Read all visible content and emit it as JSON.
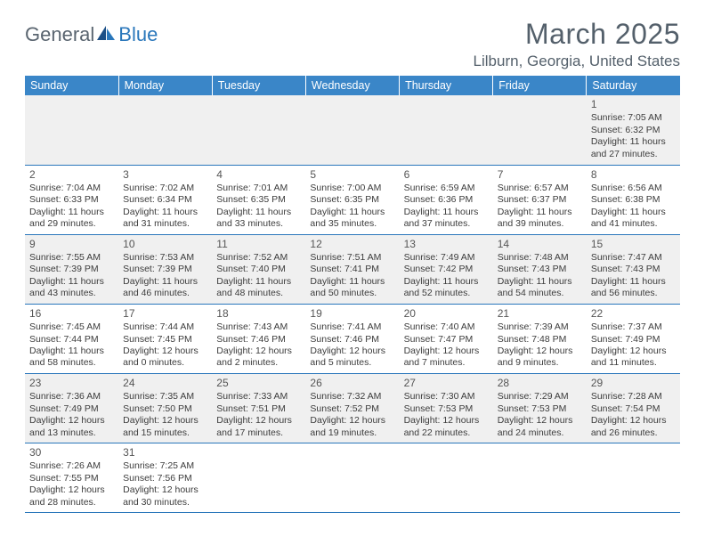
{
  "logo": {
    "general": "General",
    "blue": "Blue"
  },
  "title": "March 2025",
  "location": "Lilburn, Georgia, United States",
  "colors": {
    "header_bg": "#3a86c8",
    "header_text": "#ffffff",
    "row_even_bg": "#f0f0f0",
    "row_odd_bg": "#ffffff",
    "border": "#2a77bb",
    "text": "#3c3c3c",
    "title_text": "#54606b",
    "logo_gray": "#5a6570",
    "logo_blue": "#2a77bb"
  },
  "day_headers": [
    "Sunday",
    "Monday",
    "Tuesday",
    "Wednesday",
    "Thursday",
    "Friday",
    "Saturday"
  ],
  "weeks": [
    [
      null,
      null,
      null,
      null,
      null,
      null,
      {
        "n": "1",
        "sr": "Sunrise: 7:05 AM",
        "ss": "Sunset: 6:32 PM",
        "d1": "Daylight: 11 hours",
        "d2": "and 27 minutes."
      }
    ],
    [
      {
        "n": "2",
        "sr": "Sunrise: 7:04 AM",
        "ss": "Sunset: 6:33 PM",
        "d1": "Daylight: 11 hours",
        "d2": "and 29 minutes."
      },
      {
        "n": "3",
        "sr": "Sunrise: 7:02 AM",
        "ss": "Sunset: 6:34 PM",
        "d1": "Daylight: 11 hours",
        "d2": "and 31 minutes."
      },
      {
        "n": "4",
        "sr": "Sunrise: 7:01 AM",
        "ss": "Sunset: 6:35 PM",
        "d1": "Daylight: 11 hours",
        "d2": "and 33 minutes."
      },
      {
        "n": "5",
        "sr": "Sunrise: 7:00 AM",
        "ss": "Sunset: 6:35 PM",
        "d1": "Daylight: 11 hours",
        "d2": "and 35 minutes."
      },
      {
        "n": "6",
        "sr": "Sunrise: 6:59 AM",
        "ss": "Sunset: 6:36 PM",
        "d1": "Daylight: 11 hours",
        "d2": "and 37 minutes."
      },
      {
        "n": "7",
        "sr": "Sunrise: 6:57 AM",
        "ss": "Sunset: 6:37 PM",
        "d1": "Daylight: 11 hours",
        "d2": "and 39 minutes."
      },
      {
        "n": "8",
        "sr": "Sunrise: 6:56 AM",
        "ss": "Sunset: 6:38 PM",
        "d1": "Daylight: 11 hours",
        "d2": "and 41 minutes."
      }
    ],
    [
      {
        "n": "9",
        "sr": "Sunrise: 7:55 AM",
        "ss": "Sunset: 7:39 PM",
        "d1": "Daylight: 11 hours",
        "d2": "and 43 minutes."
      },
      {
        "n": "10",
        "sr": "Sunrise: 7:53 AM",
        "ss": "Sunset: 7:39 PM",
        "d1": "Daylight: 11 hours",
        "d2": "and 46 minutes."
      },
      {
        "n": "11",
        "sr": "Sunrise: 7:52 AM",
        "ss": "Sunset: 7:40 PM",
        "d1": "Daylight: 11 hours",
        "d2": "and 48 minutes."
      },
      {
        "n": "12",
        "sr": "Sunrise: 7:51 AM",
        "ss": "Sunset: 7:41 PM",
        "d1": "Daylight: 11 hours",
        "d2": "and 50 minutes."
      },
      {
        "n": "13",
        "sr": "Sunrise: 7:49 AM",
        "ss": "Sunset: 7:42 PM",
        "d1": "Daylight: 11 hours",
        "d2": "and 52 minutes."
      },
      {
        "n": "14",
        "sr": "Sunrise: 7:48 AM",
        "ss": "Sunset: 7:43 PM",
        "d1": "Daylight: 11 hours",
        "d2": "and 54 minutes."
      },
      {
        "n": "15",
        "sr": "Sunrise: 7:47 AM",
        "ss": "Sunset: 7:43 PM",
        "d1": "Daylight: 11 hours",
        "d2": "and 56 minutes."
      }
    ],
    [
      {
        "n": "16",
        "sr": "Sunrise: 7:45 AM",
        "ss": "Sunset: 7:44 PM",
        "d1": "Daylight: 11 hours",
        "d2": "and 58 minutes."
      },
      {
        "n": "17",
        "sr": "Sunrise: 7:44 AM",
        "ss": "Sunset: 7:45 PM",
        "d1": "Daylight: 12 hours",
        "d2": "and 0 minutes."
      },
      {
        "n": "18",
        "sr": "Sunrise: 7:43 AM",
        "ss": "Sunset: 7:46 PM",
        "d1": "Daylight: 12 hours",
        "d2": "and 2 minutes."
      },
      {
        "n": "19",
        "sr": "Sunrise: 7:41 AM",
        "ss": "Sunset: 7:46 PM",
        "d1": "Daylight: 12 hours",
        "d2": "and 5 minutes."
      },
      {
        "n": "20",
        "sr": "Sunrise: 7:40 AM",
        "ss": "Sunset: 7:47 PM",
        "d1": "Daylight: 12 hours",
        "d2": "and 7 minutes."
      },
      {
        "n": "21",
        "sr": "Sunrise: 7:39 AM",
        "ss": "Sunset: 7:48 PM",
        "d1": "Daylight: 12 hours",
        "d2": "and 9 minutes."
      },
      {
        "n": "22",
        "sr": "Sunrise: 7:37 AM",
        "ss": "Sunset: 7:49 PM",
        "d1": "Daylight: 12 hours",
        "d2": "and 11 minutes."
      }
    ],
    [
      {
        "n": "23",
        "sr": "Sunrise: 7:36 AM",
        "ss": "Sunset: 7:49 PM",
        "d1": "Daylight: 12 hours",
        "d2": "and 13 minutes."
      },
      {
        "n": "24",
        "sr": "Sunrise: 7:35 AM",
        "ss": "Sunset: 7:50 PM",
        "d1": "Daylight: 12 hours",
        "d2": "and 15 minutes."
      },
      {
        "n": "25",
        "sr": "Sunrise: 7:33 AM",
        "ss": "Sunset: 7:51 PM",
        "d1": "Daylight: 12 hours",
        "d2": "and 17 minutes."
      },
      {
        "n": "26",
        "sr": "Sunrise: 7:32 AM",
        "ss": "Sunset: 7:52 PM",
        "d1": "Daylight: 12 hours",
        "d2": "and 19 minutes."
      },
      {
        "n": "27",
        "sr": "Sunrise: 7:30 AM",
        "ss": "Sunset: 7:53 PM",
        "d1": "Daylight: 12 hours",
        "d2": "and 22 minutes."
      },
      {
        "n": "28",
        "sr": "Sunrise: 7:29 AM",
        "ss": "Sunset: 7:53 PM",
        "d1": "Daylight: 12 hours",
        "d2": "and 24 minutes."
      },
      {
        "n": "29",
        "sr": "Sunrise: 7:28 AM",
        "ss": "Sunset: 7:54 PM",
        "d1": "Daylight: 12 hours",
        "d2": "and 26 minutes."
      }
    ],
    [
      {
        "n": "30",
        "sr": "Sunrise: 7:26 AM",
        "ss": "Sunset: 7:55 PM",
        "d1": "Daylight: 12 hours",
        "d2": "and 28 minutes."
      },
      {
        "n": "31",
        "sr": "Sunrise: 7:25 AM",
        "ss": "Sunset: 7:56 PM",
        "d1": "Daylight: 12 hours",
        "d2": "and 30 minutes."
      },
      null,
      null,
      null,
      null,
      null
    ]
  ]
}
